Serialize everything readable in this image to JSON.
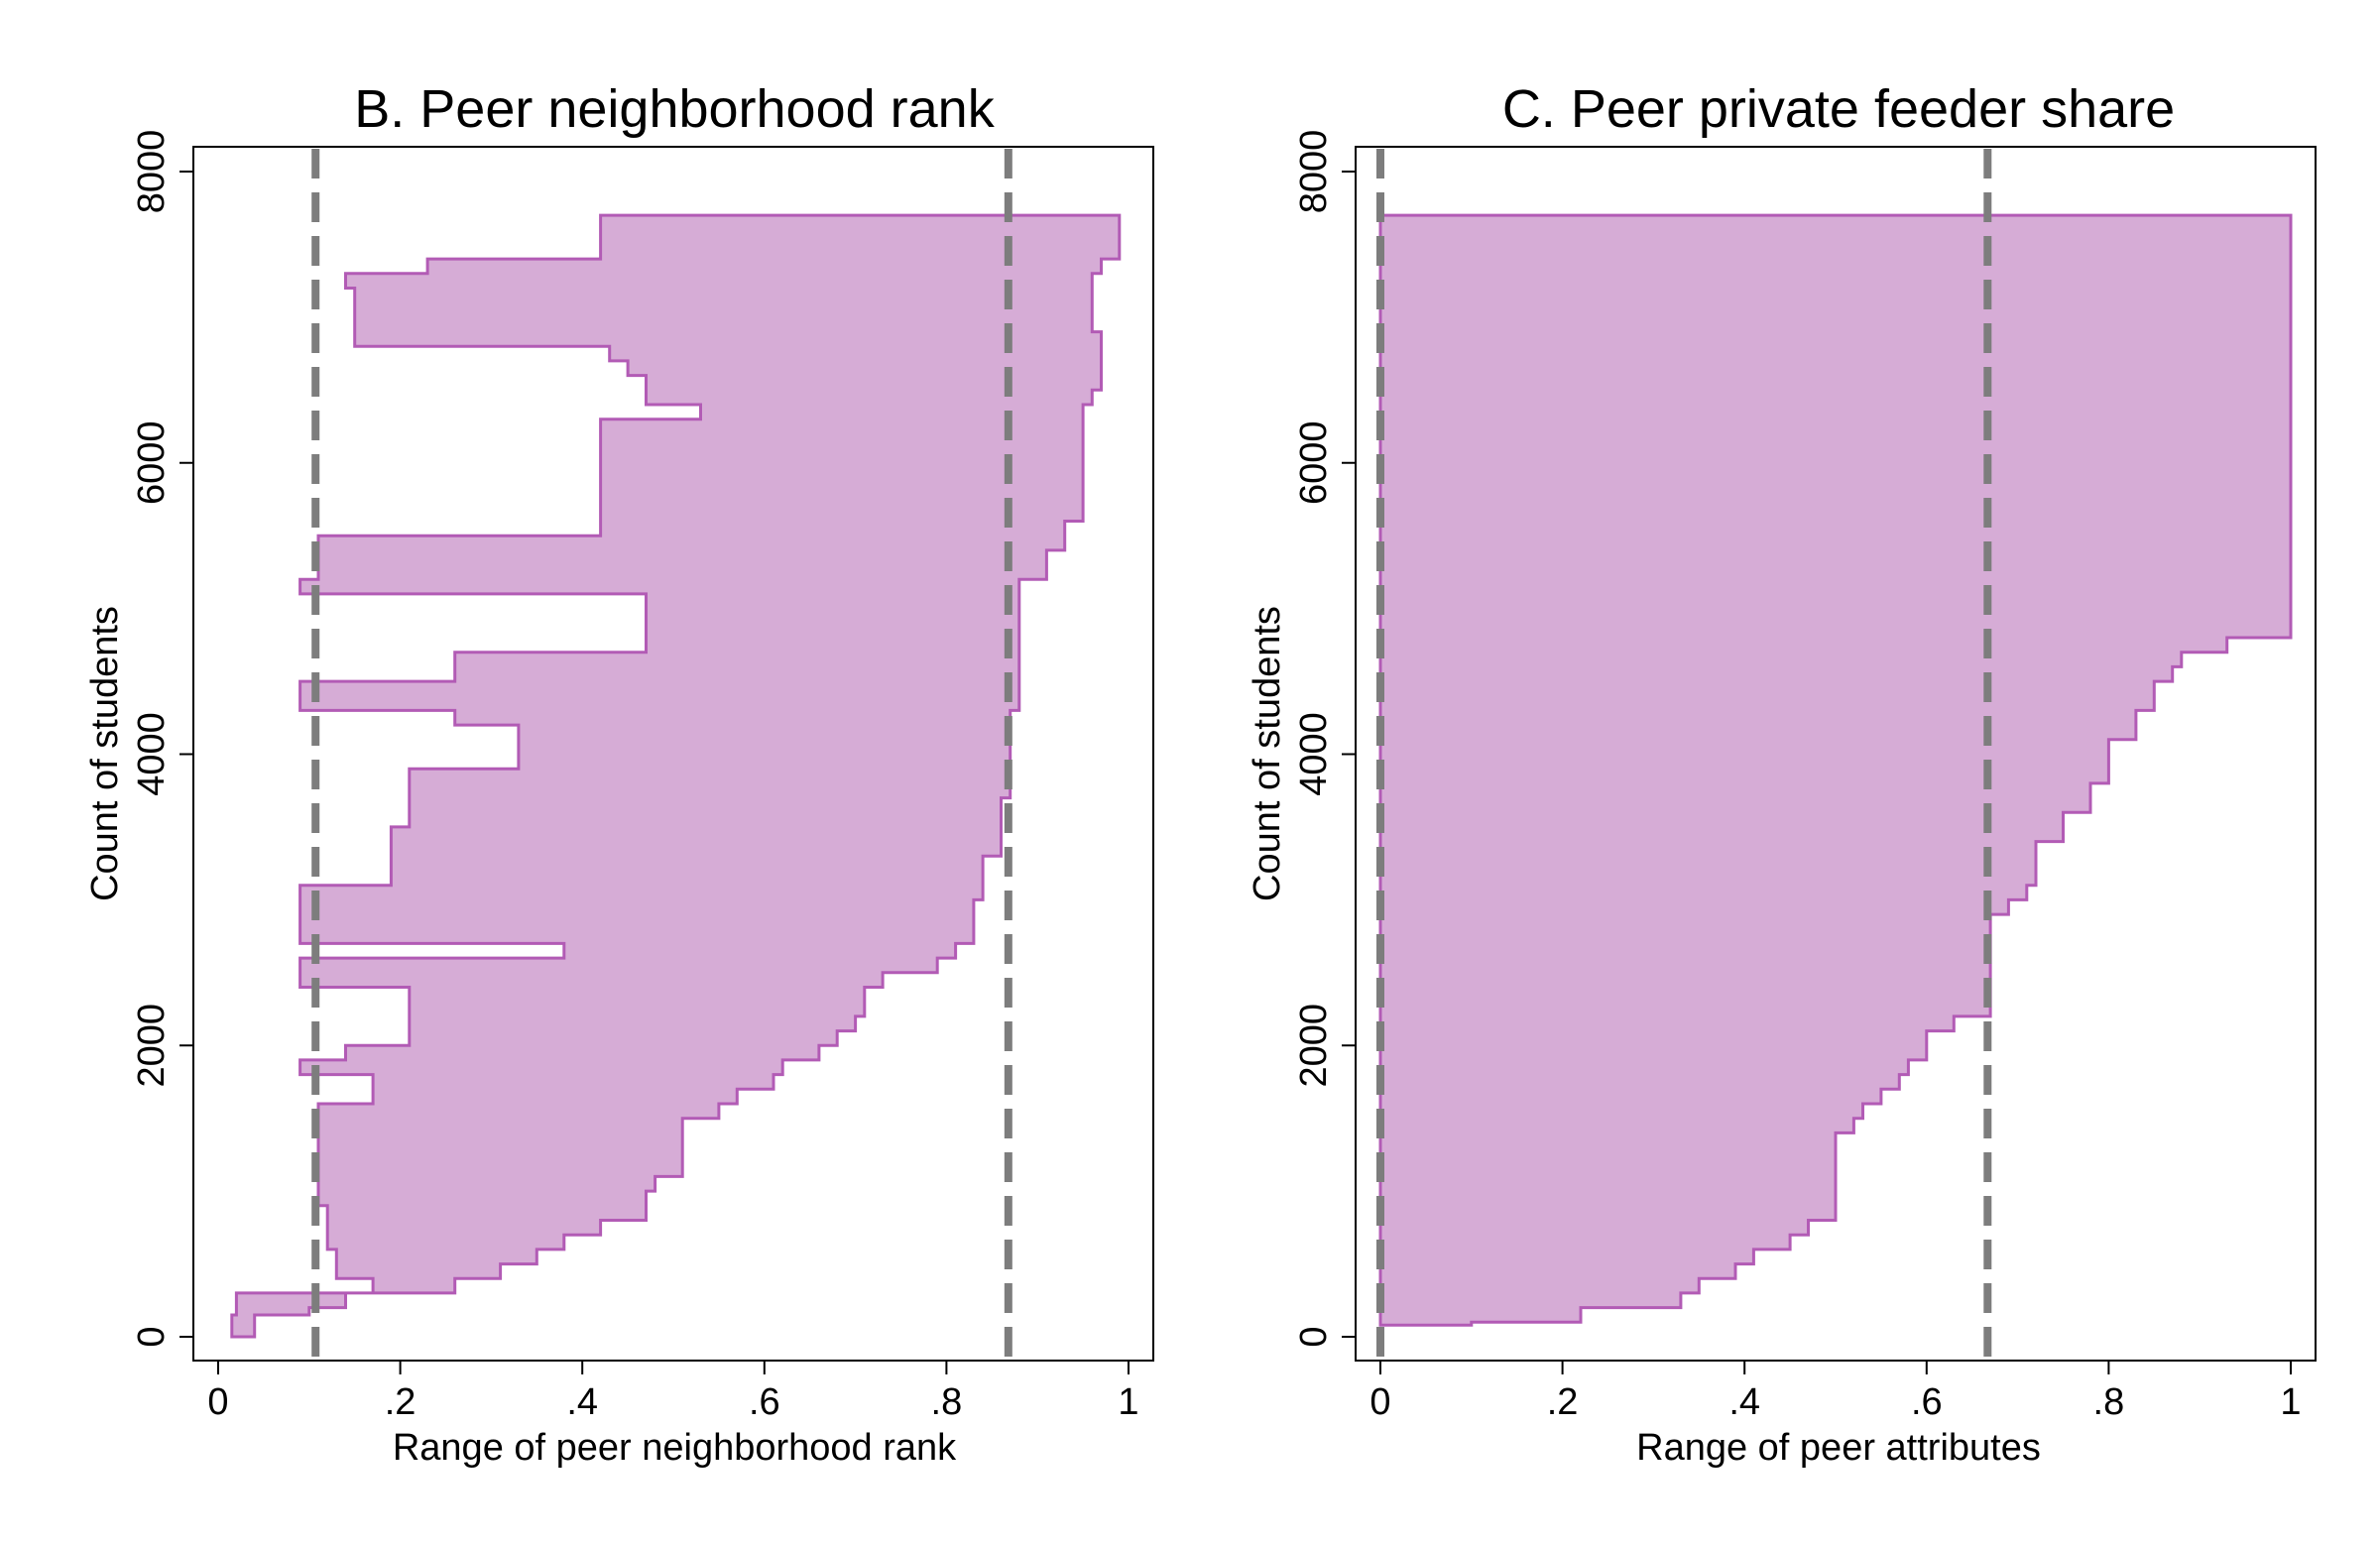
{
  "colors": {
    "band_fill": "#d6acd6",
    "band_edge": "#b25bb5",
    "ref_line": "#7d7d7d",
    "axis": "#000000",
    "background": "#ffffff"
  },
  "chart_data": [
    {
      "type": "area",
      "title": "B. Peer neighborhood rank",
      "xlabel": "Range of peer neighborhood rank",
      "ylabel": "Count of students",
      "xlim": [
        0,
        1
      ],
      "ylim": [
        0,
        8000
      ],
      "xticks": [
        "0",
        ".2",
        ".4",
        ".6",
        ".8",
        "1"
      ],
      "yticks": [
        "0",
        "2000",
        "4000",
        "6000",
        "8000"
      ],
      "grid": false,
      "reference_lines": [
        0.107,
        0.868
      ],
      "series": [
        {
          "points": [
            [
              7700,
              0.42,
              0.99
            ],
            [
              7600,
              0.42,
              0.99
            ],
            [
              7500,
              0.42,
              0.99
            ],
            [
              7400,
              0.23,
              0.97
            ],
            [
              7300,
              0.14,
              0.96
            ],
            [
              7200,
              0.15,
              0.96
            ],
            [
              7100,
              0.15,
              0.96
            ],
            [
              7000,
              0.15,
              0.96
            ],
            [
              6900,
              0.15,
              0.97
            ],
            [
              6800,
              0.43,
              0.97
            ],
            [
              6700,
              0.45,
              0.97
            ],
            [
              6600,
              0.47,
              0.97
            ],
            [
              6500,
              0.47,
              0.96
            ],
            [
              6400,
              0.53,
              0.95
            ],
            [
              6300,
              0.42,
              0.95
            ],
            [
              6200,
              0.42,
              0.95
            ],
            [
              6100,
              0.42,
              0.95
            ],
            [
              6000,
              0.42,
              0.95
            ],
            [
              5900,
              0.42,
              0.95
            ],
            [
              5800,
              0.42,
              0.95
            ],
            [
              5700,
              0.42,
              0.95
            ],
            [
              5600,
              0.42,
              0.93
            ],
            [
              5500,
              0.11,
              0.93
            ],
            [
              5400,
              0.11,
              0.91
            ],
            [
              5300,
              0.11,
              0.91
            ],
            [
              5200,
              0.09,
              0.88
            ],
            [
              5100,
              0.47,
              0.88
            ],
            [
              5000,
              0.47,
              0.88
            ],
            [
              4900,
              0.47,
              0.88
            ],
            [
              4800,
              0.47,
              0.88
            ],
            [
              4700,
              0.26,
              0.88
            ],
            [
              4600,
              0.26,
              0.88
            ],
            [
              4500,
              0.09,
              0.88
            ],
            [
              4400,
              0.09,
              0.88
            ],
            [
              4300,
              0.26,
              0.87
            ],
            [
              4200,
              0.33,
              0.87
            ],
            [
              4100,
              0.33,
              0.87
            ],
            [
              4000,
              0.33,
              0.87
            ],
            [
              3900,
              0.21,
              0.87
            ],
            [
              3800,
              0.21,
              0.87
            ],
            [
              3700,
              0.21,
              0.86
            ],
            [
              3600,
              0.21,
              0.86
            ],
            [
              3500,
              0.19,
              0.86
            ],
            [
              3400,
              0.19,
              0.86
            ],
            [
              3300,
              0.19,
              0.84
            ],
            [
              3200,
              0.19,
              0.84
            ],
            [
              3100,
              0.09,
              0.84
            ],
            [
              3000,
              0.09,
              0.83
            ],
            [
              2900,
              0.09,
              0.83
            ],
            [
              2800,
              0.09,
              0.83
            ],
            [
              2700,
              0.38,
              0.81
            ],
            [
              2600,
              0.09,
              0.79
            ],
            [
              2500,
              0.09,
              0.73
            ],
            [
              2400,
              0.21,
              0.71
            ],
            [
              2300,
              0.21,
              0.71
            ],
            [
              2200,
              0.21,
              0.7
            ],
            [
              2100,
              0.21,
              0.68
            ],
            [
              2000,
              0.14,
              0.66
            ],
            [
              1900,
              0.09,
              0.62
            ],
            [
              1800,
              0.17,
              0.61
            ],
            [
              1700,
              0.17,
              0.57
            ],
            [
              1600,
              0.11,
              0.55
            ],
            [
              1500,
              0.11,
              0.51
            ],
            [
              1400,
              0.11,
              0.51
            ],
            [
              1300,
              0.11,
              0.51
            ],
            [
              1200,
              0.11,
              0.51
            ],
            [
              1100,
              0.11,
              0.48
            ],
            [
              1000,
              0.11,
              0.47
            ],
            [
              900,
              0.12,
              0.47
            ],
            [
              800,
              0.12,
              0.42
            ],
            [
              700,
              0.12,
              0.38
            ],
            [
              600,
              0.13,
              0.35
            ],
            [
              500,
              0.13,
              0.31
            ],
            [
              400,
              0.17,
              0.26
            ],
            [
              300,
              0.02,
              0.14
            ],
            [
              200,
              0.02,
              0.1
            ],
            [
              150,
              0.015,
              0.04
            ],
            [
              0,
              0.015,
              0.04
            ]
          ]
        }
      ]
    },
    {
      "type": "area",
      "title": "C. Peer private feeder share",
      "xlabel": "Range of peer attributes",
      "ylabel": "Count of students",
      "xlim": [
        0,
        1
      ],
      "ylim": [
        0,
        8000
      ],
      "xticks": [
        "0",
        ".2",
        ".4",
        ".6",
        ".8",
        "1"
      ],
      "yticks": [
        "0",
        "2000",
        "4000",
        "6000",
        "8000"
      ],
      "grid": false,
      "reference_lines": [
        0,
        0.667
      ],
      "series": [
        {
          "points": [
            [
              7700,
              0,
              1
            ],
            [
              7650,
              0,
              1
            ],
            [
              7000,
              0,
              1
            ],
            [
              6000,
              0,
              1
            ],
            [
              5000,
              0,
              1
            ],
            [
              4900,
              0,
              1
            ],
            [
              4800,
              0,
              0.93
            ],
            [
              4700,
              0,
              0.88
            ],
            [
              4600,
              0,
              0.87
            ],
            [
              4500,
              0,
              0.85
            ],
            [
              4400,
              0,
              0.85
            ],
            [
              4300,
              0,
              0.83
            ],
            [
              4200,
              0,
              0.83
            ],
            [
              4100,
              0,
              0.8
            ],
            [
              4000,
              0,
              0.8
            ],
            [
              3900,
              0,
              0.8
            ],
            [
              3800,
              0,
              0.78
            ],
            [
              3700,
              0,
              0.78
            ],
            [
              3600,
              0,
              0.75
            ],
            [
              3500,
              0,
              0.75
            ],
            [
              3400,
              0,
              0.72
            ],
            [
              3300,
              0,
              0.72
            ],
            [
              3200,
              0,
              0.72
            ],
            [
              3100,
              0,
              0.71
            ],
            [
              3000,
              0,
              0.69
            ],
            [
              2900,
              0,
              0.67
            ],
            [
              2800,
              0,
              0.67
            ],
            [
              2700,
              0,
              0.67
            ],
            [
              2600,
              0,
              0.67
            ],
            [
              2500,
              0,
              0.67
            ],
            [
              2400,
              0,
              0.67
            ],
            [
              2300,
              0,
              0.67
            ],
            [
              2200,
              0,
              0.63
            ],
            [
              2100,
              0,
              0.6
            ],
            [
              2000,
              0,
              0.6
            ],
            [
              1900,
              0,
              0.58
            ],
            [
              1800,
              0,
              0.57
            ],
            [
              1700,
              0,
              0.55
            ],
            [
              1600,
              0,
              0.53
            ],
            [
              1500,
              0,
              0.52
            ],
            [
              1400,
              0,
              0.5
            ],
            [
              1300,
              0,
              0.5
            ],
            [
              1200,
              0,
              0.5
            ],
            [
              1100,
              0,
              0.5
            ],
            [
              1000,
              0,
              0.5
            ],
            [
              900,
              0,
              0.5
            ],
            [
              800,
              0,
              0.47
            ],
            [
              700,
              0,
              0.45
            ],
            [
              600,
              0,
              0.41
            ],
            [
              500,
              0,
              0.39
            ],
            [
              400,
              0,
              0.35
            ],
            [
              300,
              0,
              0.33
            ],
            [
              200,
              0,
              0.22
            ],
            [
              100,
              0,
              0.1
            ],
            [
              80,
              0.01,
              0.02
            ]
          ]
        }
      ]
    }
  ]
}
